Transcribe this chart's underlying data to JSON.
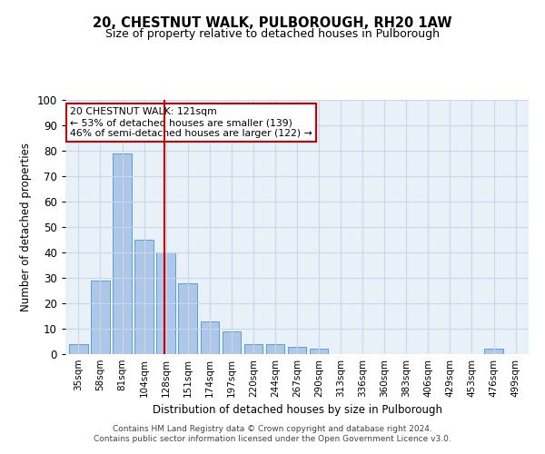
{
  "title": "20, CHESTNUT WALK, PULBOROUGH, RH20 1AW",
  "subtitle": "Size of property relative to detached houses in Pulborough",
  "xlabel": "Distribution of detached houses by size in Pulborough",
  "ylabel": "Number of detached properties",
  "categories": [
    "35sqm",
    "58sqm",
    "81sqm",
    "104sqm",
    "128sqm",
    "151sqm",
    "174sqm",
    "197sqm",
    "220sqm",
    "244sqm",
    "267sqm",
    "290sqm",
    "313sqm",
    "336sqm",
    "360sqm",
    "383sqm",
    "406sqm",
    "429sqm",
    "453sqm",
    "476sqm",
    "499sqm"
  ],
  "values": [
    4,
    29,
    79,
    45,
    40,
    28,
    13,
    9,
    4,
    4,
    3,
    2,
    0,
    0,
    0,
    0,
    0,
    0,
    0,
    2,
    0
  ],
  "bar_color": "#aec6e8",
  "bar_edge_color": "#5a9fd4",
  "grid_color": "#c8d8e8",
  "bg_color": "#e8f0f8",
  "vline_color": "#cc0000",
  "annotation_text": "20 CHESTNUT WALK: 121sqm\n← 53% of detached houses are smaller (139)\n46% of semi-detached houses are larger (122) →",
  "annotation_box_color": "#cc0000",
  "footer1": "Contains HM Land Registry data © Crown copyright and database right 2024.",
  "footer2": "Contains public sector information licensed under the Open Government Licence v3.0.",
  "ylim": [
    0,
    100
  ],
  "yticks": [
    0,
    10,
    20,
    30,
    40,
    50,
    60,
    70,
    80,
    90,
    100
  ]
}
